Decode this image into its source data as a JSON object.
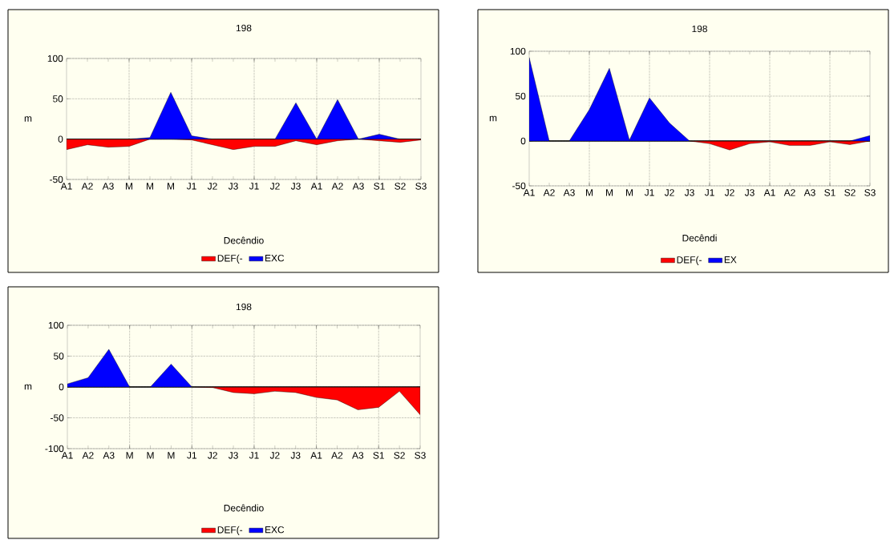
{
  "chart_data": [
    {
      "type": "area",
      "title": "198",
      "xlabel": "Decêndio",
      "ylabel": "m",
      "categories": [
        "A1",
        "A2",
        "A3",
        "M",
        "M",
        "M",
        "J1",
        "J2",
        "J3",
        "J1",
        "J2",
        "J3",
        "A1",
        "A2",
        "A3",
        "S1",
        "S2",
        "S3"
      ],
      "series": [
        {
          "name": "DEF(-",
          "color": "#ff0000",
          "values": [
            -13,
            -7,
            -10,
            -9,
            0,
            0,
            -1,
            -7,
            -13,
            -9,
            -9,
            -2,
            -7,
            -2,
            0,
            -2,
            -4,
            -1
          ]
        },
        {
          "name": "EXC",
          "color": "#0000ff",
          "values": [
            0,
            0,
            0,
            0,
            2,
            58,
            4,
            0,
            0,
            0,
            0,
            45,
            0,
            49,
            0,
            6,
            0,
            0
          ]
        }
      ],
      "ylim": [
        -50,
        100
      ],
      "yticks": [
        -50,
        0,
        50,
        100
      ],
      "grid": true,
      "legend": "bottom"
    },
    {
      "type": "area",
      "title": "198",
      "xlabel": "Decêndi",
      "ylabel": "m",
      "categories": [
        "A1",
        "A2",
        "A3",
        "M",
        "M",
        "M",
        "J1",
        "J2",
        "J3",
        "J1",
        "J2",
        "J3",
        "A1",
        "A2",
        "A3",
        "S1",
        "S2",
        "S3"
      ],
      "series": [
        {
          "name": "DEF(-",
          "color": "#ff0000",
          "values": [
            0,
            0,
            0,
            0,
            0,
            0,
            0,
            0,
            0,
            -3,
            -10,
            -3,
            -1,
            -5,
            -5,
            -1,
            -4,
            0
          ]
        },
        {
          "name": "EX",
          "color": "#0000ff",
          "values": [
            93,
            0,
            0,
            35,
            81,
            1,
            48,
            20,
            0,
            0,
            0,
            0,
            0,
            0,
            0,
            0,
            0,
            6
          ]
        }
      ],
      "ylim": [
        -50,
        100
      ],
      "yticks": [
        -50,
        0,
        50,
        100
      ],
      "grid": true,
      "legend": "bottom"
    },
    {
      "type": "area",
      "title": "198",
      "xlabel": "Decêndio",
      "ylabel": "m",
      "categories": [
        "A1",
        "A2",
        "A3",
        "M",
        "M",
        "M",
        "J1",
        "J2",
        "J3",
        "J1",
        "J2",
        "J3",
        "A1",
        "A2",
        "A3",
        "S1",
        "S2",
        "S3"
      ],
      "series": [
        {
          "name": "DEF(-",
          "color": "#ff0000",
          "values": [
            0,
            0,
            0,
            0,
            0,
            0,
            0,
            -1,
            -9,
            -11,
            -7,
            -9,
            -17,
            -21,
            -37,
            -33,
            -7,
            -45
          ]
        },
        {
          "name": "EXC",
          "color": "#0000ff",
          "values": [
            5,
            15,
            61,
            0,
            0,
            37,
            0,
            0,
            0,
            0,
            0,
            0,
            0,
            0,
            0,
            0,
            0,
            0
          ]
        }
      ],
      "ylim": [
        -100,
        100
      ],
      "yticks": [
        -100,
        -50,
        0,
        50,
        100
      ],
      "grid": true,
      "legend": "bottom"
    }
  ]
}
